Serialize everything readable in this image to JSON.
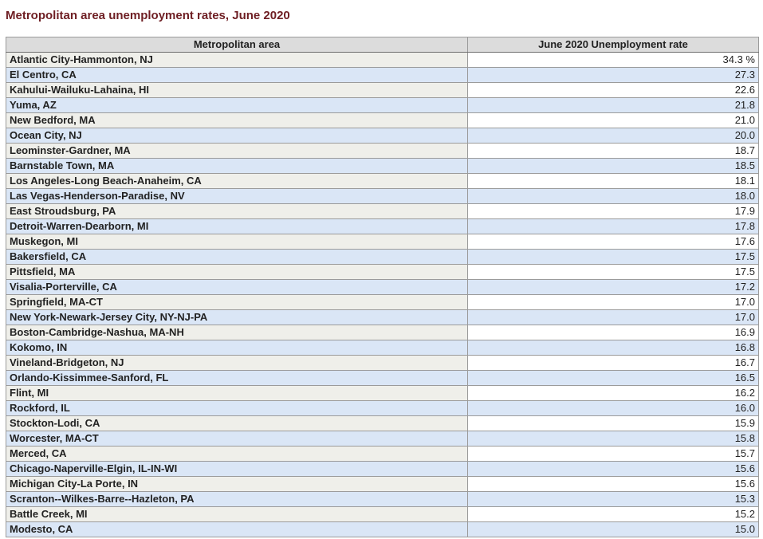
{
  "page": {
    "title": "Metropolitan area unemployment rates, June 2020"
  },
  "table": {
    "columns": [
      "Metropolitan area",
      "June 2020 Unemployment rate"
    ],
    "rows": [
      {
        "area": "Atlantic City-Hammonton, NJ",
        "rate": "34.3 %"
      },
      {
        "area": "El Centro, CA",
        "rate": "27.3"
      },
      {
        "area": "Kahului-Wailuku-Lahaina, HI",
        "rate": "22.6"
      },
      {
        "area": "Yuma, AZ",
        "rate": "21.8"
      },
      {
        "area": "New Bedford, MA",
        "rate": "21.0"
      },
      {
        "area": "Ocean City, NJ",
        "rate": "20.0"
      },
      {
        "area": "Leominster-Gardner, MA",
        "rate": "18.7"
      },
      {
        "area": "Barnstable Town, MA",
        "rate": "18.5"
      },
      {
        "area": "Los Angeles-Long Beach-Anaheim, CA",
        "rate": "18.1"
      },
      {
        "area": "Las Vegas-Henderson-Paradise, NV",
        "rate": "18.0"
      },
      {
        "area": "East Stroudsburg, PA",
        "rate": "17.9"
      },
      {
        "area": "Detroit-Warren-Dearborn, MI",
        "rate": "17.8"
      },
      {
        "area": "Muskegon, MI",
        "rate": "17.6"
      },
      {
        "area": "Bakersfield, CA",
        "rate": "17.5"
      },
      {
        "area": "Pittsfield, MA",
        "rate": "17.5"
      },
      {
        "area": "Visalia-Porterville, CA",
        "rate": "17.2"
      },
      {
        "area": "Springfield, MA-CT",
        "rate": "17.0"
      },
      {
        "area": "New York-Newark-Jersey City, NY-NJ-PA",
        "rate": "17.0"
      },
      {
        "area": "Boston-Cambridge-Nashua, MA-NH",
        "rate": "16.9"
      },
      {
        "area": "Kokomo, IN",
        "rate": "16.8"
      },
      {
        "area": "Vineland-Bridgeton, NJ",
        "rate": "16.7"
      },
      {
        "area": "Orlando-Kissimmee-Sanford, FL",
        "rate": "16.5"
      },
      {
        "area": "Flint, MI",
        "rate": "16.2"
      },
      {
        "area": "Rockford, IL",
        "rate": "16.0"
      },
      {
        "area": "Stockton-Lodi, CA",
        "rate": "15.9"
      },
      {
        "area": "Worcester, MA-CT",
        "rate": "15.8"
      },
      {
        "area": "Merced, CA",
        "rate": "15.7"
      },
      {
        "area": "Chicago-Naperville-Elgin, IL-IN-WI",
        "rate": "15.6"
      },
      {
        "area": "Michigan City-La Porte, IN",
        "rate": "15.6"
      },
      {
        "area": "Scranton--Wilkes-Barre--Hazleton, PA",
        "rate": "15.3"
      },
      {
        "area": "Battle Creek, MI",
        "rate": "15.2"
      },
      {
        "area": "Modesto, CA",
        "rate": "15.0"
      }
    ]
  },
  "chart_data": {
    "type": "table",
    "title": "Metropolitan area unemployment rates, June 2020",
    "columns": [
      "Metropolitan area",
      "June 2020 Unemployment rate"
    ],
    "categories": [
      "Atlantic City-Hammonton, NJ",
      "El Centro, CA",
      "Kahului-Wailuku-Lahaina, HI",
      "Yuma, AZ",
      "New Bedford, MA",
      "Ocean City, NJ",
      "Leominster-Gardner, MA",
      "Barnstable Town, MA",
      "Los Angeles-Long Beach-Anaheim, CA",
      "Las Vegas-Henderson-Paradise, NV",
      "East Stroudsburg, PA",
      "Detroit-Warren-Dearborn, MI",
      "Muskegon, MI",
      "Bakersfield, CA",
      "Pittsfield, MA",
      "Visalia-Porterville, CA",
      "Springfield, MA-CT",
      "New York-Newark-Jersey City, NY-NJ-PA",
      "Boston-Cambridge-Nashua, MA-NH",
      "Kokomo, IN",
      "Vineland-Bridgeton, NJ",
      "Orlando-Kissimmee-Sanford, FL",
      "Flint, MI",
      "Rockford, IL",
      "Stockton-Lodi, CA",
      "Worcester, MA-CT",
      "Merced, CA",
      "Chicago-Naperville-Elgin, IL-IN-WI",
      "Michigan City-La Porte, IN",
      "Scranton--Wilkes-Barre--Hazleton, PA",
      "Battle Creek, MI",
      "Modesto, CA"
    ],
    "values": [
      34.3,
      27.3,
      22.6,
      21.8,
      21.0,
      20.0,
      18.7,
      18.5,
      18.1,
      18.0,
      17.9,
      17.8,
      17.6,
      17.5,
      17.5,
      17.2,
      17.0,
      17.0,
      16.9,
      16.8,
      16.7,
      16.5,
      16.2,
      16.0,
      15.9,
      15.8,
      15.7,
      15.6,
      15.6,
      15.3,
      15.2,
      15.0
    ],
    "unit": "percent"
  },
  "colors": {
    "title_text": "#6e1e23",
    "header_bg": "#dcdcdc",
    "row_blue_bg": "#dae6f6",
    "row_gray_bg": "#efefea",
    "border": "#9b9b9b"
  }
}
